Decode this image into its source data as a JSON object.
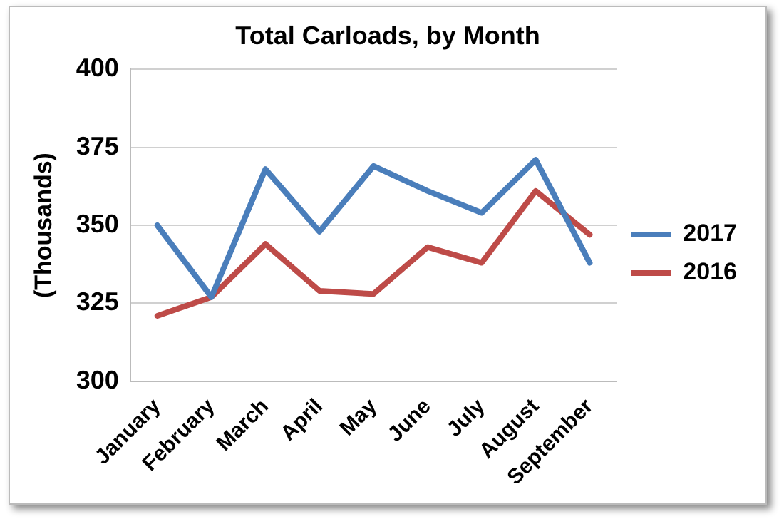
{
  "chart_data": {
    "type": "line",
    "title": "Total Carloads, by Month",
    "ylabel": "(Thousands)",
    "categories": [
      "January",
      "February",
      "March",
      "April",
      "May",
      "June",
      "July",
      "August",
      "September"
    ],
    "series": [
      {
        "name": "2017",
        "color": "#4a7ebb",
        "values": [
          350,
          327,
          368,
          348,
          369,
          361,
          354,
          371,
          338
        ]
      },
      {
        "name": "2016",
        "color": "#be4b48",
        "values": [
          321,
          327,
          344,
          329,
          328,
          343,
          338,
          361,
          347
        ]
      }
    ],
    "ylim": [
      300,
      400
    ],
    "yticks": [
      300,
      325,
      350,
      375,
      400
    ],
    "grid": "y",
    "legend": "right",
    "marker": "none",
    "line_style": "solid"
  }
}
